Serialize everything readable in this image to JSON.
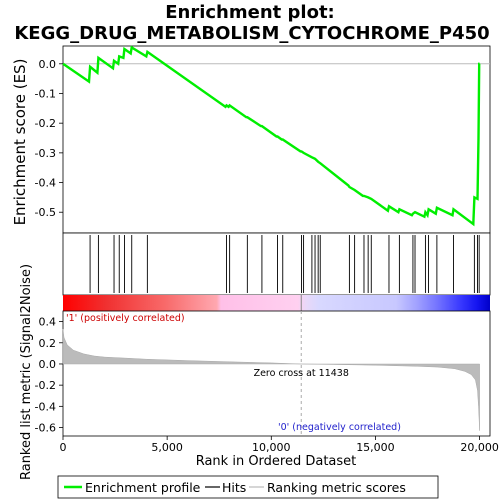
{
  "chart_data": {
    "type": "line",
    "title_line1": "Enrichment plot:",
    "title_line2": "KEGG_DRUG_METABOLISM_CYTOCHROME_P450",
    "es_ylabel": "Enrichment score (ES)",
    "metric_ylabel": "Ranked list metric (Signal2Noise)",
    "xlabel": "Rank in Ordered Dataset",
    "n_genes": 20000,
    "es_ylim": [
      -0.57,
      0.06
    ],
    "es_yticks": [
      0.0,
      -0.1,
      -0.2,
      -0.3,
      -0.4,
      -0.5
    ],
    "es_yticklabels": [
      "0.0",
      "-0.1",
      "-0.2",
      "-0.3",
      "-0.4",
      "-0.5"
    ],
    "metric_ylim": [
      -0.68,
      0.5
    ],
    "metric_yticks": [
      0.4,
      0.2,
      0.0,
      -0.2,
      -0.4,
      -0.6
    ],
    "metric_yticklabels": [
      "0.4",
      "0.2",
      "0.0",
      "-0.2",
      "-0.4",
      "-0.6"
    ],
    "xticks": [
      0,
      5000,
      10000,
      15000,
      20000
    ],
    "xticklabels": [
      "0",
      "5,000",
      "10,000",
      "15,000",
      "20,000"
    ],
    "zero_cross": 11438,
    "zero_cross_label": "Zero cross at 11438",
    "pos_label": "'1' (positively correlated)",
    "neg_label": "'0' (negatively correlated)",
    "legend": {
      "profile": "Enrichment profile",
      "hits": "Hits",
      "metric": "Ranking metric scores"
    },
    "colors": {
      "profile": "#00ee00",
      "hits": "#000000",
      "metric": "#bbbbbb",
      "red": "#ff0000",
      "blue": "#0000ff"
    },
    "hits": [
      1300,
      1700,
      2450,
      2700,
      2950,
      3300,
      4050,
      7850,
      8000,
      8850,
      9550,
      10300,
      10550,
      11450,
      11550,
      11950,
      12100,
      12250,
      12350,
      13750,
      14000,
      14450,
      14650,
      14800,
      15650,
      16150,
      16800,
      16900,
      17400,
      17550,
      17950,
      18750,
      19750,
      19900,
      19980
    ],
    "es_curve": [
      [
        0,
        0.0
      ],
      [
        1250,
        -0.06
      ],
      [
        1300,
        -0.01
      ],
      [
        1650,
        -0.03
      ],
      [
        1700,
        0.02
      ],
      [
        2400,
        -0.015
      ],
      [
        2450,
        0.01
      ],
      [
        2650,
        0.0
      ],
      [
        2700,
        0.025
      ],
      [
        2900,
        0.02
      ],
      [
        2950,
        0.05
      ],
      [
        3250,
        0.035
      ],
      [
        3300,
        0.055
      ],
      [
        4000,
        0.025
      ],
      [
        4050,
        0.04
      ],
      [
        7800,
        -0.145
      ],
      [
        7850,
        -0.14
      ],
      [
        7950,
        -0.145
      ],
      [
        8000,
        -0.14
      ],
      [
        8800,
        -0.18
      ],
      [
        8850,
        -0.18
      ],
      [
        9500,
        -0.21
      ],
      [
        9550,
        -0.21
      ],
      [
        10250,
        -0.245
      ],
      [
        10300,
        -0.245
      ],
      [
        10500,
        -0.255
      ],
      [
        10550,
        -0.255
      ],
      [
        11400,
        -0.295
      ],
      [
        11450,
        -0.295
      ],
      [
        11550,
        -0.3
      ],
      [
        11950,
        -0.315
      ],
      [
        12100,
        -0.32
      ],
      [
        12250,
        -0.33
      ],
      [
        12350,
        -0.335
      ],
      [
        13700,
        -0.41
      ],
      [
        13750,
        -0.415
      ],
      [
        14000,
        -0.425
      ],
      [
        14400,
        -0.445
      ],
      [
        14450,
        -0.445
      ],
      [
        14650,
        -0.45
      ],
      [
        14800,
        -0.455
      ],
      [
        15600,
        -0.495
      ],
      [
        15650,
        -0.48
      ],
      [
        16100,
        -0.5
      ],
      [
        16150,
        -0.49
      ],
      [
        16750,
        -0.51
      ],
      [
        16800,
        -0.505
      ],
      [
        16900,
        -0.5
      ],
      [
        17350,
        -0.515
      ],
      [
        17400,
        -0.5
      ],
      [
        17500,
        -0.51
      ],
      [
        17550,
        -0.49
      ],
      [
        17900,
        -0.505
      ],
      [
        17950,
        -0.485
      ],
      [
        18700,
        -0.51
      ],
      [
        18750,
        -0.49
      ],
      [
        19700,
        -0.54
      ],
      [
        19750,
        -0.45
      ],
      [
        19900,
        -0.455
      ],
      [
        19950,
        -0.25
      ],
      [
        19980,
        0.0
      ],
      [
        20000,
        0.0
      ]
    ],
    "metric_curve": [
      [
        0,
        0.33
      ],
      [
        50,
        0.25
      ],
      [
        200,
        0.18
      ],
      [
        500,
        0.13
      ],
      [
        1000,
        0.095
      ],
      [
        1500,
        0.075
      ],
      [
        2000,
        0.065
      ],
      [
        3000,
        0.055
      ],
      [
        4000,
        0.045
      ],
      [
        6000,
        0.032
      ],
      [
        8000,
        0.02
      ],
      [
        10000,
        0.01
      ],
      [
        11438,
        0.0
      ],
      [
        13000,
        -0.005
      ],
      [
        15000,
        -0.012
      ],
      [
        17000,
        -0.022
      ],
      [
        18000,
        -0.03
      ],
      [
        18800,
        -0.045
      ],
      [
        19300,
        -0.07
      ],
      [
        19600,
        -0.1
      ],
      [
        19800,
        -0.15
      ],
      [
        19900,
        -0.25
      ],
      [
        19950,
        -0.4
      ],
      [
        20000,
        -0.63
      ]
    ]
  }
}
